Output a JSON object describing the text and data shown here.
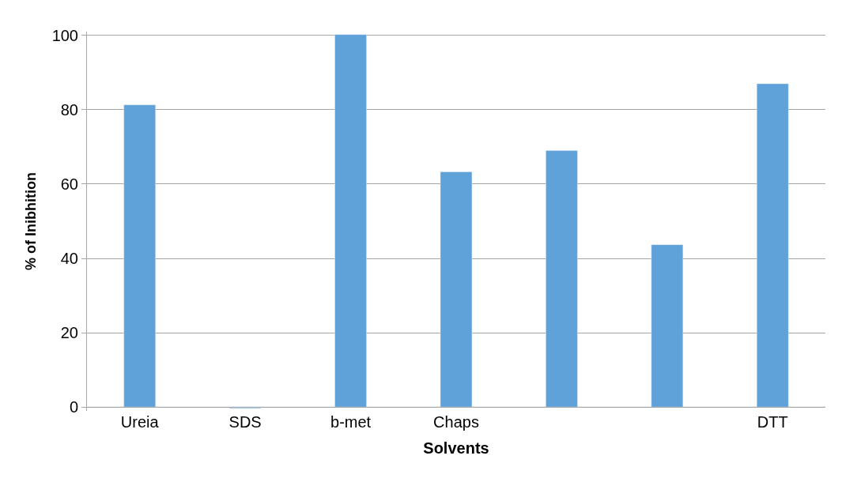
{
  "chart_data": {
    "type": "bar",
    "xlabel": "Solvents",
    "ylabel": "% of Inibhition",
    "categories": [
      "Ureia",
      "SDS",
      "b-met",
      "Chaps",
      null,
      null,
      "DTT"
    ],
    "values": [
      81.3,
      -0.3,
      100.2,
      63.3,
      69.0,
      43.7,
      87.0
    ],
    "color": "#5fa2d9",
    "ylim": [
      -1,
      101
    ],
    "yticks": [
      0,
      20,
      40,
      60,
      80,
      100
    ],
    "grid": "y",
    "legend": false
  }
}
